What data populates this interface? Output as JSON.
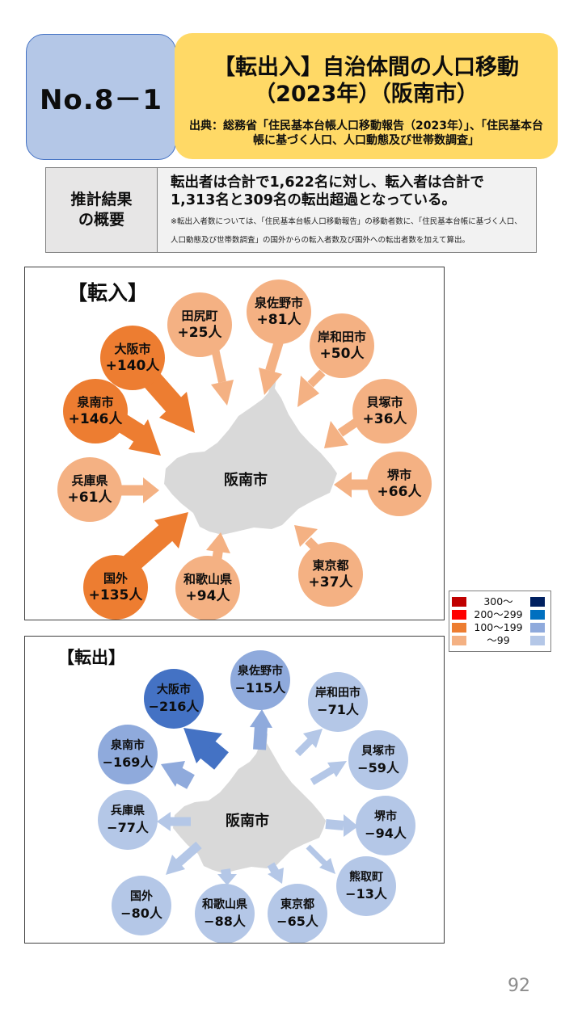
{
  "header": {
    "number": "No.8－1",
    "title_line1": "【転出入】自治体間の人口移動",
    "title_line2": "（2023年）（阪南市）",
    "source": "出典：総務省「住民基本台帳人口移動報告（2023年）」、「住民基本台帳に基づく人口、人口動態及び世帯数調査」"
  },
  "summary": {
    "head_line1": "推計結果",
    "head_line2": "の概要",
    "main_line1": "転出者は合計で1,622名に対し、転入者は合計で",
    "main_line2": "1,313名と309名の転出超過となっている。",
    "note": "※転出入者数については、「住民基本台帳人口移動報告」の移動者数に、「住民基本台帳に基づく人口、人口動態及び世帯数調査」の国外からの転入者数及び国外への転出者数を加えて算出。"
  },
  "inflow": {
    "title": "【転入】",
    "center": "阪南市",
    "items": [
      {
        "name": "田尻町",
        "value": "+25人",
        "count": 25
      },
      {
        "name": "泉佐野市",
        "value": "+81人",
        "count": 81
      },
      {
        "name": "岸和田市",
        "value": "+50人",
        "count": 50
      },
      {
        "name": "大阪市",
        "value": "+140人",
        "count": 140
      },
      {
        "name": "貝塚市",
        "value": "+36人",
        "count": 36
      },
      {
        "name": "泉南市",
        "value": "+146人",
        "count": 146
      },
      {
        "name": "兵庫県",
        "value": "+61人",
        "count": 61
      },
      {
        "name": "堺市",
        "value": "+66人",
        "count": 66
      },
      {
        "name": "東京都",
        "value": "+37人",
        "count": 37
      },
      {
        "name": "国外",
        "value": "+135人",
        "count": 135
      },
      {
        "name": "和歌山県",
        "value": "+94人",
        "count": 94
      }
    ]
  },
  "outflow": {
    "title": "【転出】",
    "center": "阪南市",
    "items": [
      {
        "name": "泉佐野市",
        "value": "−115人",
        "count": 115
      },
      {
        "name": "大阪市",
        "value": "−216人",
        "count": 216
      },
      {
        "name": "岸和田市",
        "value": "−71人",
        "count": 71
      },
      {
        "name": "泉南市",
        "value": "−169人",
        "count": 169
      },
      {
        "name": "貝塚市",
        "value": "−59人",
        "count": 59
      },
      {
        "name": "兵庫県",
        "value": "−77人",
        "count": 77
      },
      {
        "name": "堺市",
        "value": "−94人",
        "count": 94
      },
      {
        "name": "熊取町",
        "value": "−13人",
        "count": 13
      },
      {
        "name": "国外",
        "value": "−80人",
        "count": 80
      },
      {
        "name": "和歌山県",
        "value": "−88人",
        "count": 88
      },
      {
        "name": "東京都",
        "value": "−65人",
        "count": 65
      }
    ]
  },
  "legend": {
    "rows": [
      {
        "label": "300～",
        "in_color": "#c00000",
        "out_color": "#002060"
      },
      {
        "label": "200～299",
        "in_color": "#ff0000",
        "out_color": "#0070c0"
      },
      {
        "label": "100～199",
        "in_color": "#ed7d31",
        "out_color": "#8faadc"
      },
      {
        "label": "～99",
        "in_color": "#f4b183",
        "out_color": "#b4c7e7"
      }
    ]
  },
  "colors": {
    "in_100_199": "#ed7d31",
    "in_under_99": "#f4b183",
    "out_200_299": "#4472c4",
    "out_100_199": "#8faadc",
    "out_under_99": "#b4c7e7",
    "map_fill": "#d9d9d9"
  },
  "page_number": "92"
}
